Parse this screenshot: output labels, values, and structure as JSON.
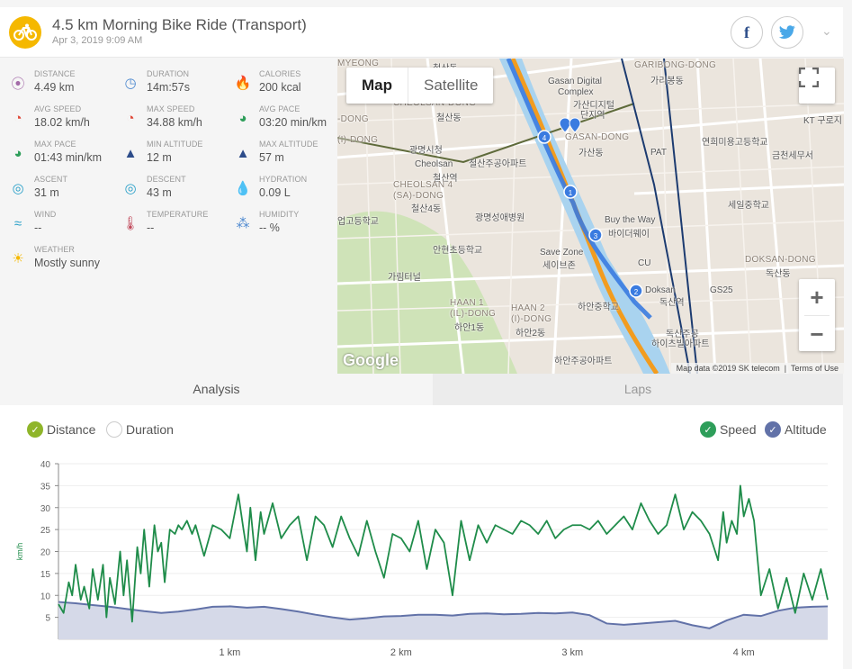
{
  "activity": {
    "title": "4.5 km Morning Bike Ride (Transport)",
    "datetime": "Apr 3, 2019 9:09 AM"
  },
  "social": {
    "facebook": "f",
    "twitter": "t"
  },
  "stats": [
    {
      "label": "DISTANCE",
      "value": "4.49 km",
      "icon": "map-pin-icon",
      "color": "#a36aa8"
    },
    {
      "label": "DURATION",
      "value": "14m:57s",
      "icon": "stopwatch-icon",
      "color": "#4f8ad0"
    },
    {
      "label": "CALORIES",
      "value": "200 kcal",
      "icon": "flame-icon",
      "color": "#e8552a"
    },
    {
      "label": "AVG SPEED",
      "value": "18.02 km/h",
      "icon": "speedometer-icon",
      "color": "#e04a3a"
    },
    {
      "label": "MAX SPEED",
      "value": "34.88 km/h",
      "icon": "speedometer-icon",
      "color": "#e04a3a"
    },
    {
      "label": "AVG PACE",
      "value": "03:20 min/km",
      "icon": "pace-icon",
      "color": "#2e9e5a"
    },
    {
      "label": "MAX PACE",
      "value": "01:43 min/km",
      "icon": "pace-icon",
      "color": "#2e9e5a"
    },
    {
      "label": "MIN ALTITUDE",
      "value": "12 m",
      "icon": "mountain-icon",
      "color": "#2d4c8a"
    },
    {
      "label": "MAX ALTITUDE",
      "value": "57 m",
      "icon": "mountain-icon",
      "color": "#2d4c8a"
    },
    {
      "label": "ASCENT",
      "value": "31 m",
      "icon": "compass-icon",
      "color": "#2aa0c8"
    },
    {
      "label": "DESCENT",
      "value": "43 m",
      "icon": "compass-icon",
      "color": "#2aa0c8"
    },
    {
      "label": "HYDRATION",
      "value": "0.09 L",
      "icon": "droplets-icon",
      "color": "#4f8ad0"
    },
    {
      "label": "WIND",
      "value": "--",
      "icon": "wind-icon",
      "color": "#2aa0c8"
    },
    {
      "label": "TEMPERATURE",
      "value": "--",
      "icon": "thermometer-icon",
      "color": "#c0485a"
    },
    {
      "label": "HUMIDITY",
      "value": "-- %",
      "icon": "humidity-icon",
      "color": "#4f8ad0"
    },
    {
      "label": "WEATHER",
      "value": "Mostly sunny",
      "icon": "sun-icon",
      "color": "#f5b800"
    }
  ],
  "map": {
    "type_map": "Map",
    "type_satellite": "Satellite",
    "zoom_in": "+",
    "zoom_out": "−",
    "logo": "Google",
    "attribution": "Map data ©2019 SK telecom",
    "terms": "Terms of Use",
    "labels": [
      "GARIBONG-DONG",
      "가리봉동",
      "Gasan Digital",
      "Complex",
      "가산디지털",
      "단지역",
      "GASAN-DONG",
      "가산동",
      "CHEOLSAN-DONG",
      "철산동",
      "광명시청",
      "Cheolsan",
      "철산역",
      "철산주공아파트",
      "CHEOLSAN 4",
      "(SA)-DONG",
      "철산4동",
      "광명성애병원",
      "업고등학교",
      "안현초등학교",
      "가림터널",
      "HAAN 1",
      "(IL)-DONG",
      "하안1동",
      "HAAN 2",
      "(I)-DONG",
      "하안2동",
      "Save Zone",
      "세이브존",
      "Buy the Way",
      "바이더웨이",
      "CU",
      "Doksan",
      "독산역",
      "하안중학교",
      "독산주공",
      "하이츠빌아파트",
      "하안주공아파트",
      "GS25",
      "PAT",
      "연희미용고등학교",
      "금천세무서",
      "KT 구로지",
      "세일중학교",
      "DOKSAN-DONG",
      "독산동",
      "MYEONG",
      "-DONG",
      "(I)-DONG",
      "철산동"
    ],
    "markers": [
      "1",
      "2",
      "3",
      "4"
    ]
  },
  "tabs": {
    "analysis": "Analysis",
    "laps": "Laps"
  },
  "chart_toggles": {
    "distance": "Distance",
    "duration": "Duration",
    "speed": "Speed",
    "altitude": "Altitude"
  },
  "colors": {
    "speed": "#1f8c4a",
    "altitude": "#6272a8",
    "altitude_fill": "#d5d9e8",
    "accent": "#f5b800"
  },
  "chart_data": {
    "type": "line",
    "x_unit": "km",
    "ylabel": "km/h",
    "ylim": [
      0,
      40
    ],
    "xlim": [
      0,
      4.49
    ],
    "yticks": [
      5,
      10,
      15,
      20,
      25,
      30,
      35,
      40
    ],
    "xticks": [
      "1 km",
      "2 km",
      "3 km",
      "4 km"
    ],
    "xtick_values": [
      1,
      2,
      3,
      4
    ],
    "series": [
      {
        "name": "Speed",
        "x": [
          0.0,
          0.03,
          0.06,
          0.08,
          0.1,
          0.13,
          0.15,
          0.18,
          0.2,
          0.23,
          0.26,
          0.28,
          0.3,
          0.33,
          0.36,
          0.38,
          0.4,
          0.43,
          0.46,
          0.48,
          0.5,
          0.53,
          0.56,
          0.58,
          0.6,
          0.62,
          0.65,
          0.68,
          0.7,
          0.72,
          0.75,
          0.78,
          0.8,
          0.85,
          0.9,
          0.95,
          1.0,
          1.05,
          1.08,
          1.1,
          1.12,
          1.15,
          1.18,
          1.2,
          1.25,
          1.3,
          1.35,
          1.4,
          1.45,
          1.5,
          1.55,
          1.6,
          1.65,
          1.7,
          1.75,
          1.8,
          1.85,
          1.9,
          1.95,
          2.0,
          2.05,
          2.1,
          2.15,
          2.2,
          2.25,
          2.3,
          2.35,
          2.4,
          2.45,
          2.5,
          2.55,
          2.6,
          2.65,
          2.7,
          2.75,
          2.8,
          2.85,
          2.9,
          2.95,
          3.0,
          3.05,
          3.1,
          3.15,
          3.2,
          3.25,
          3.3,
          3.35,
          3.4,
          3.45,
          3.5,
          3.55,
          3.6,
          3.65,
          3.7,
          3.75,
          3.8,
          3.85,
          3.88,
          3.9,
          3.93,
          3.96,
          3.98,
          4.0,
          4.03,
          4.06,
          4.1,
          4.15,
          4.2,
          4.25,
          4.3,
          4.35,
          4.4,
          4.45,
          4.49
        ],
        "values": [
          8,
          6,
          13,
          10,
          17,
          9,
          12,
          7,
          16,
          9,
          17,
          5,
          14,
          8,
          20,
          10,
          18,
          4,
          21,
          15,
          25,
          12,
          26,
          20,
          22,
          13,
          25,
          24,
          26,
          25,
          27,
          24,
          26,
          19,
          26,
          25,
          23,
          33,
          25,
          20,
          30,
          18,
          29,
          24,
          31,
          23,
          26,
          28,
          18,
          28,
          26,
          21,
          28,
          23,
          19,
          27,
          20,
          14,
          24,
          23,
          20,
          27,
          16,
          25,
          22,
          10,
          27,
          18,
          26,
          22,
          26,
          25,
          24,
          27,
          26,
          24,
          27,
          23,
          25,
          26,
          26,
          25,
          27,
          24,
          26,
          28,
          25,
          31,
          27,
          24,
          26,
          33,
          25,
          29,
          27,
          24,
          18,
          29,
          22,
          27,
          24,
          35,
          28,
          32,
          27,
          10,
          16,
          7,
          14,
          6,
          15,
          9,
          16,
          9
        ],
        "color": "#1f8c4a"
      },
      {
        "name": "Altitude",
        "x": [
          0.0,
          0.1,
          0.2,
          0.3,
          0.4,
          0.5,
          0.6,
          0.7,
          0.8,
          0.9,
          1.0,
          1.1,
          1.2,
          1.3,
          1.4,
          1.5,
          1.6,
          1.7,
          1.8,
          1.9,
          2.0,
          2.1,
          2.2,
          2.3,
          2.4,
          2.5,
          2.6,
          2.7,
          2.8,
          2.9,
          3.0,
          3.1,
          3.2,
          3.3,
          3.4,
          3.5,
          3.6,
          3.7,
          3.8,
          3.9,
          4.0,
          4.1,
          4.2,
          4.3,
          4.4,
          4.49
        ],
        "values": [
          8.5,
          8.2,
          7.8,
          7.4,
          6.9,
          6.4,
          6.0,
          6.3,
          6.8,
          7.4,
          7.5,
          7.2,
          7.4,
          6.9,
          6.3,
          5.6,
          5.0,
          4.5,
          4.8,
          5.2,
          5.3,
          5.6,
          5.6,
          5.4,
          5.8,
          5.9,
          5.7,
          5.8,
          6.0,
          5.9,
          6.1,
          5.5,
          3.6,
          3.3,
          3.6,
          3.9,
          4.2,
          3.2,
          2.5,
          4.3,
          5.6,
          5.3,
          6.5,
          7.2,
          7.4,
          7.5
        ],
        "color": "#6272a8"
      }
    ]
  }
}
